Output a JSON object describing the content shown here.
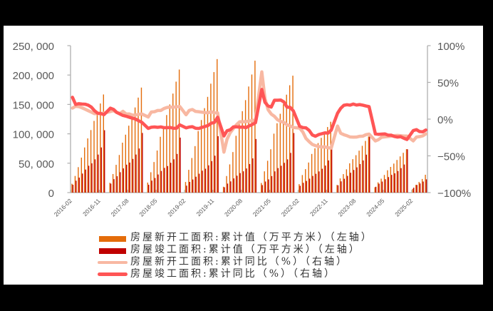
{
  "chart_data": {
    "type": "bar+line",
    "title": "",
    "xlabel": "",
    "ylabel_left": "",
    "ylabel_right": "",
    "grid": false,
    "legend_position": "bottom",
    "x_axis": {
      "start": "2016-02",
      "end": "2025-06",
      "tick_labels": [
        "2016-02",
        "2016-11",
        "2017-08",
        "2018-05",
        "2019-02",
        "2019-11",
        "2020-08",
        "2021-05",
        "2022-02",
        "2022-11",
        "2023-08",
        "2024-05",
        "2025-02"
      ]
    },
    "y_left": {
      "ylim": [
        0,
        250000
      ],
      "ticks": [
        0,
        50000,
        100000,
        150000,
        200000,
        250000
      ],
      "tick_labels": [
        "0",
        "50, 000",
        "100, 000",
        "150, 000",
        "200, 000",
        "250, 000"
      ]
    },
    "y_right": {
      "ylim": [
        -100,
        100
      ],
      "ticks": [
        -100,
        -50,
        0,
        50,
        100
      ],
      "tick_labels": [
        "−100%",
        "−50%",
        "0%",
        "50%",
        "100%"
      ]
    },
    "categories": [
      "2016-02",
      "2016-03",
      "2016-04",
      "2016-05",
      "2016-06",
      "2016-07",
      "2016-08",
      "2016-09",
      "2016-10",
      "2016-11",
      "2016-12",
      "2017-02",
      "2017-03",
      "2017-04",
      "2017-05",
      "2017-06",
      "2017-07",
      "2017-08",
      "2017-09",
      "2017-10",
      "2017-11",
      "2017-12",
      "2018-02",
      "2018-03",
      "2018-04",
      "2018-05",
      "2018-06",
      "2018-07",
      "2018-08",
      "2018-09",
      "2018-10",
      "2018-11",
      "2018-12",
      "2019-02",
      "2019-03",
      "2019-04",
      "2019-05",
      "2019-06",
      "2019-07",
      "2019-08",
      "2019-09",
      "2019-10",
      "2019-11",
      "2019-12",
      "2020-02",
      "2020-03",
      "2020-04",
      "2020-05",
      "2020-06",
      "2020-07",
      "2020-08",
      "2020-09",
      "2020-10",
      "2020-11",
      "2020-12",
      "2021-02",
      "2021-03",
      "2021-04",
      "2021-05",
      "2021-06",
      "2021-07",
      "2021-08",
      "2021-09",
      "2021-10",
      "2021-11",
      "2021-12",
      "2022-02",
      "2022-03",
      "2022-04",
      "2022-05",
      "2022-06",
      "2022-07",
      "2022-08",
      "2022-09",
      "2022-10",
      "2022-11",
      "2022-12",
      "2023-02",
      "2023-03",
      "2023-04",
      "2023-05",
      "2023-06",
      "2023-07",
      "2023-08",
      "2023-09",
      "2023-10",
      "2023-11",
      "2023-12",
      "2024-02",
      "2024-03",
      "2024-04",
      "2024-05",
      "2024-06",
      "2024-07",
      "2024-08",
      "2024-09",
      "2024-10",
      "2024-11",
      "2024-12",
      "2025-02",
      "2025-03",
      "2025-04",
      "2025-05",
      "2025-06"
    ],
    "series": [
      {
        "name": "房屋新开工面积:累计值（万平方米）（左轴）",
        "type": "bar",
        "axis": "left",
        "color": "#E46C0A",
        "values": [
          15000,
          28300,
          43300,
          59500,
          76800,
          92200,
          106400,
          122000,
          137300,
          151600,
          166928,
          16560,
          31580,
          47240,
          64020,
          84940,
          98560,
          113850,
          128830,
          144850,
          161610,
          178654,
          17040,
          34640,
          52010,
          71570,
          94960,
          112750,
          131950,
          149960,
          168460,
          188760,
          209342,
          18060,
          38760,
          58820,
          79080,
          104550,
          123460,
          143690,
          162860,
          185310,
          205000,
          227154,
          9950,
          28220,
          48000,
          68960,
          96610,
          119020,
          138520,
          157320,
          180490,
          200900,
          224433,
          16350,
          36180,
          54140,
          73720,
          100280,
          117950,
          134090,
          150240,
          166590,
          182620,
          198895,
          14360,
          29850,
          39900,
          51160,
          65780,
          75370,
          84210,
          93150,
          103620,
          111580,
          120587,
          13010,
          24120,
          31440,
          39600,
          49800,
          56900,
          63660,
          71350,
          79580,
          87920,
          95376,
          9150,
          17410,
          23710,
          30020,
          38000,
          43700,
          49340,
          55510,
          61590,
          67700,
          73893,
          6440,
          13160,
          18070,
          23180,
          30364
        ]
      },
      {
        "name": "房屋竣工面积:累计值（万平方米）（左轴）",
        "type": "bar",
        "axis": "left",
        "color": "#C00000",
        "values": [
          13350,
          20220,
          25500,
          32400,
          39200,
          45700,
          49800,
          56600,
          64700,
          76800,
          106128,
          15340,
          22910,
          27850,
          34700,
          41160,
          47530,
          51090,
          57340,
          64760,
          75030,
          101486,
          13410,
          20390,
          24870,
          30810,
          36800,
          42020,
          45160,
          50800,
          56670,
          65800,
          93550,
          11810,
          18190,
          22310,
          26990,
          32130,
          37270,
          40640,
          46430,
          53550,
          62840,
          95942,
          9110,
          15320,
          19080,
          24130,
          28760,
          33170,
          36250,
          41040,
          48620,
          58250,
          91218,
          12790,
          18830,
          22500,
          28090,
          36150,
          41690,
          45680,
          50640,
          56540,
          67570,
          101412,
          11540,
          16660,
          19820,
          23790,
          28380,
          31980,
          36040,
          40560,
          45970,
          54730,
          86222,
          12460,
          19110,
          23550,
          28450,
          33770,
          38540,
          42960,
          48590,
          54700,
          64530,
          99831,
          9940,
          15150,
          18750,
          22730,
          26410,
          30140,
          32820,
          36730,
          41630,
          47750,
          73743,
          8390,
          12980,
          15580,
          18800,
          22567
        ]
      },
      {
        "name": "房屋新开工面积:累计同比（%）（右轴）",
        "type": "line",
        "axis": "right",
        "color": "#F8B8A2",
        "values": [
          15.0,
          17.5,
          17.0,
          15.5,
          13.5,
          11.5,
          9.5,
          7.5,
          7.5,
          7.6,
          8.1,
          10.4,
          11.6,
          9.1,
          7.6,
          10.6,
          6.9,
          7.0,
          5.6,
          5.5,
          6.6,
          7.0,
          2.9,
          9.7,
          10.1,
          11.8,
          11.8,
          14.4,
          15.9,
          16.4,
          16.3,
          16.8,
          17.2,
          6.0,
          11.9,
          13.1,
          10.5,
          10.1,
          9.5,
          8.9,
          8.6,
          10.0,
          8.6,
          8.5,
          -44.9,
          -27.2,
          -18.4,
          -12.8,
          -7.6,
          -3.6,
          -3.6,
          -3.4,
          -2.6,
          -2.0,
          -1.2,
          64.3,
          28.2,
          12.8,
          6.9,
          3.8,
          -0.9,
          -3.2,
          -4.5,
          -7.7,
          -9.1,
          -11.4,
          -12.2,
          -17.5,
          -26.3,
          -30.6,
          -34.4,
          -36.1,
          -37.2,
          -38.0,
          -37.8,
          -38.9,
          -39.4,
          -9.4,
          -19.2,
          -21.2,
          -22.6,
          -24.3,
          -24.5,
          -24.4,
          -23.4,
          -23.2,
          -21.2,
          -20.4,
          -29.7,
          -27.8,
          -24.6,
          -24.2,
          -23.7,
          -23.2,
          -22.5,
          -22.2,
          -22.6,
          -23.0,
          -23.0,
          -29.6,
          -24.4,
          -23.8,
          -22.8,
          -20.0
        ]
      },
      {
        "name": "房屋竣工面积:累计同比（%）（右轴）",
        "type": "line",
        "axis": "right",
        "color": "#FF5555",
        "values": [
          29.7,
          20.0,
          21.0,
          20.5,
          20.3,
          19.0,
          16.3,
          11.4,
          8.0,
          7.5,
          6.1,
          14.9,
          13.3,
          9.2,
          7.1,
          5.0,
          4.0,
          2.6,
          1.3,
          0.1,
          -2.3,
          -4.4,
          -12.6,
          -11.0,
          -10.7,
          -11.2,
          -10.6,
          -11.6,
          -11.6,
          -11.4,
          -12.5,
          -12.3,
          -7.8,
          -11.9,
          -10.8,
          -10.3,
          -12.4,
          -12.7,
          -11.3,
          -10.0,
          -8.6,
          -5.5,
          -4.5,
          2.6,
          -22.9,
          -15.8,
          -14.5,
          -10.6,
          -10.5,
          -11.0,
          -10.8,
          -11.6,
          -9.2,
          -7.3,
          -4.9,
          40.4,
          22.9,
          17.9,
          16.4,
          25.7,
          25.7,
          26.0,
          23.4,
          16.3,
          16.0,
          11.2,
          -9.8,
          -11.5,
          -11.9,
          -15.3,
          -21.5,
          -23.3,
          -21.1,
          -19.9,
          -18.7,
          -19.0,
          -15.0,
          8.0,
          14.7,
          18.8,
          19.6,
          19.0,
          20.5,
          19.2,
          19.8,
          19.0,
          17.9,
          17.0,
          -20.2,
          -20.7,
          -20.4,
          -20.1,
          -21.8,
          -21.8,
          -23.6,
          -24.4,
          -23.9,
          -26.0,
          -27.7,
          -15.6,
          -14.3,
          -16.9,
          -17.3,
          -14.8
        ]
      }
    ]
  },
  "legend": {
    "items": [
      {
        "label": "房屋新开工面积:累计值（万平方米）（左轴）",
        "kind": "bar",
        "color": "#E46C0A"
      },
      {
        "label": "房屋竣工面积:累计值（万平方米）（左轴）",
        "kind": "bar",
        "color": "#C00000"
      },
      {
        "label": "房屋新开工面积:累计同比（%）（右轴）",
        "kind": "line",
        "color": "#F8B8A2"
      },
      {
        "label": "房屋竣工面积:累计同比（%）（右轴）",
        "kind": "line",
        "color": "#FF5555"
      }
    ]
  }
}
